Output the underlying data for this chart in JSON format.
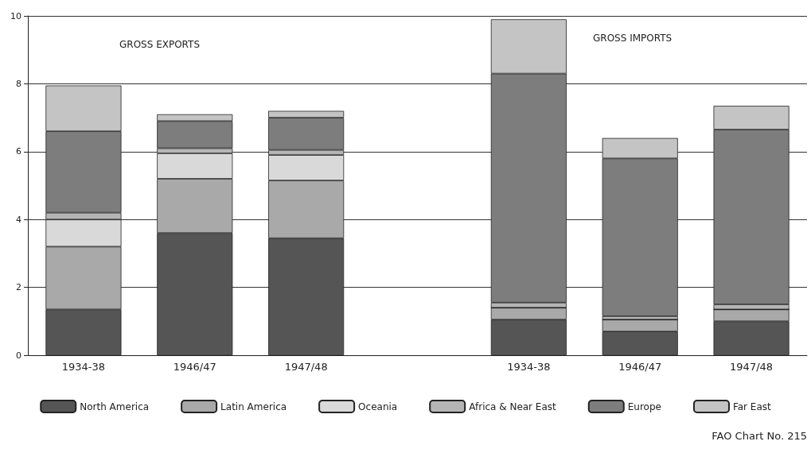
{
  "chart_data": {
    "type": "bar",
    "stacked": true,
    "categories": [
      "1934-38",
      "1946/47",
      "1947/48",
      null,
      "1934-38",
      "1946/47",
      "1947/48"
    ],
    "series": [
      {
        "name": "North America",
        "color": "#555555",
        "values": [
          1.35,
          3.6,
          3.45,
          null,
          1.05,
          0.7,
          1.0
        ]
      },
      {
        "name": "Latin America",
        "color": "#a9a9a9",
        "values": [
          1.85,
          1.6,
          1.7,
          null,
          0.35,
          0.35,
          0.35
        ]
      },
      {
        "name": "Oceania",
        "color": "#d9d9d9",
        "values": [
          0.8,
          0.75,
          0.75,
          null,
          0,
          0,
          0
        ]
      },
      {
        "name": "Africa & Near East",
        "color": "#b5b5b5",
        "values": [
          0.2,
          0.15,
          0.15,
          null,
          0.15,
          0.1,
          0.15
        ]
      },
      {
        "name": "Europe",
        "color": "#7d7d7d",
        "values": [
          2.4,
          0.8,
          0.95,
          null,
          6.75,
          4.65,
          5.15
        ]
      },
      {
        "name": "Far East",
        "color": "#c4c4c4",
        "values": [
          1.35,
          0.2,
          0.2,
          null,
          1.6,
          0.6,
          0.7
        ]
      }
    ],
    "ylim": [
      0,
      10
    ],
    "yticks": [
      0,
      2,
      4,
      6,
      8,
      10
    ],
    "grid": "y",
    "legend": "bottom",
    "annotations": [
      "GROSS EXPORTS",
      "GROSS IMPORTS",
      "FAO Chart No. 215"
    ]
  }
}
